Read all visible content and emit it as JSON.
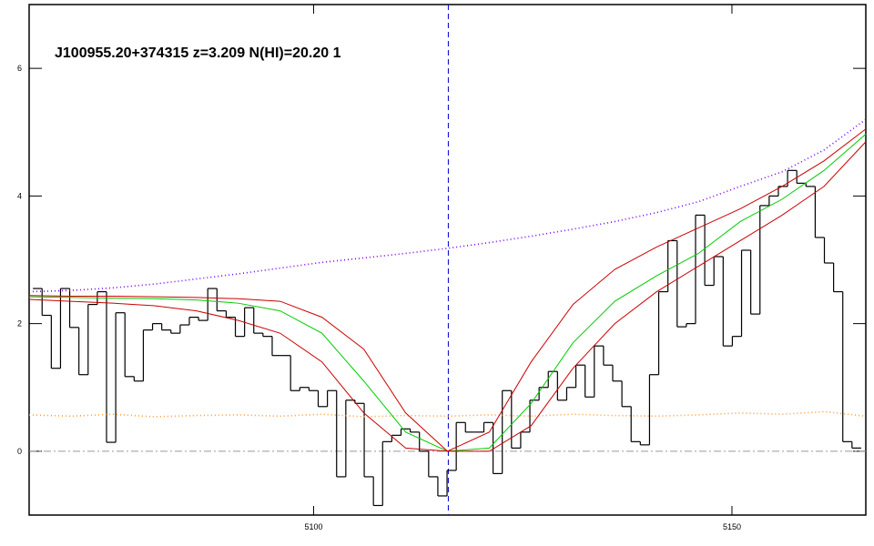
{
  "chart_data": {
    "type": "line",
    "title": "J100955.20+374315 z=3.209 N(HI)=20.20 1",
    "xlim": [
      5066,
      5166
    ],
    "ylim": [
      -1,
      7
    ],
    "xticks": [
      5100,
      5150
    ],
    "yticks": [
      0,
      2,
      4,
      6
    ],
    "vlines": [
      {
        "value": 5116.1,
        "color": "#0000cc",
        "style": "dashed"
      }
    ],
    "hlines": [
      {
        "value": 0,
        "color": "#999999",
        "style": "dashdot"
      }
    ],
    "series": [
      {
        "color": "#000000",
        "style": "steps",
        "x": [
          5067.0,
          5068.1,
          5069.2,
          5070.3,
          5071.4,
          5072.5,
          5073.6,
          5074.7,
          5075.8,
          5076.9,
          5078.0,
          5079.1,
          5080.2,
          5081.3,
          5082.4,
          5083.5,
          5084.6,
          5085.7,
          5086.8,
          5087.9,
          5089.0,
          5090.1,
          5091.2,
          5092.3,
          5093.4,
          5094.5,
          5095.6,
          5096.7,
          5097.8,
          5098.9,
          5100.0,
          5101.1,
          5102.2,
          5103.3,
          5104.4,
          5105.5,
          5106.6,
          5107.7,
          5108.8,
          5109.9,
          5111.0,
          5112.1,
          5113.2,
          5114.3,
          5115.4,
          5116.5,
          5117.6,
          5118.7,
          5119.8,
          5120.9,
          5122.0,
          5123.1,
          5124.2,
          5125.3,
          5126.4,
          5127.5,
          5128.6,
          5129.7,
          5130.8,
          5131.9,
          5133.0,
          5134.1,
          5135.2,
          5136.3,
          5137.4,
          5138.5,
          5139.6,
          5140.7,
          5141.8,
          5142.9,
          5144.0,
          5145.1,
          5146.2,
          5147.3,
          5148.4,
          5149.5,
          5150.6,
          5151.7,
          5152.8,
          5153.9,
          5155.0,
          5156.1,
          5157.2,
          5158.3,
          5159.4,
          5160.5,
          5161.6,
          5162.7,
          5163.8,
          5164.9
        ],
        "values": [
          2.55,
          2.13,
          1.3,
          2.55,
          1.94,
          1.2,
          2.3,
          2.5,
          0.14,
          2.17,
          1.17,
          1.1,
          1.9,
          2.0,
          1.9,
          1.85,
          1.98,
          2.1,
          2.05,
          2.55,
          2.2,
          2.1,
          1.8,
          2.25,
          1.85,
          1.8,
          1.5,
          1.5,
          0.95,
          1.0,
          0.95,
          0.7,
          0.95,
          -0.4,
          0.8,
          0.75,
          -0.4,
          -0.85,
          0.15,
          0.25,
          0.35,
          0.3,
          0.0,
          -0.4,
          -0.7,
          -0.3,
          0.45,
          0.3,
          0.3,
          0.45,
          -0.35,
          0.95,
          0.05,
          0.3,
          0.8,
          1.0,
          1.25,
          0.8,
          1.0,
          1.35,
          0.85,
          1.65,
          1.35,
          1.1,
          0.7,
          0.15,
          0.1,
          1.2,
          2.5,
          3.3,
          1.95,
          2.0,
          3.7,
          2.6,
          3.05,
          1.65,
          1.8,
          3.15,
          2.15,
          3.85,
          4.0,
          4.15,
          4.4,
          4.2,
          4.15,
          3.35,
          2.95,
          2.5,
          0.15,
          0.05
        ]
      },
      {
        "color": "#7a00ff",
        "style": "dotted",
        "x": [
          5066,
          5071,
          5076,
          5081,
          5086,
          5091,
          5096,
          5101,
          5106,
          5111,
          5116,
          5121,
          5126,
          5131,
          5136,
          5141,
          5146,
          5151,
          5156,
          5161,
          5166
        ],
        "values": [
          2.5,
          2.52,
          2.56,
          2.62,
          2.7,
          2.78,
          2.87,
          2.96,
          3.03,
          3.1,
          3.18,
          3.27,
          3.37,
          3.48,
          3.6,
          3.74,
          3.91,
          4.15,
          4.38,
          4.72,
          5.2
        ]
      },
      {
        "color": "#ff9933",
        "style": "dotted",
        "x": [
          5066,
          5071,
          5076,
          5081,
          5086,
          5091,
          5096,
          5101,
          5106,
          5111,
          5116,
          5121,
          5126,
          5131,
          5136,
          5141,
          5146,
          5151,
          5156,
          5161,
          5166
        ],
        "values": [
          0.57,
          0.55,
          0.58,
          0.54,
          0.56,
          0.57,
          0.55,
          0.58,
          0.54,
          0.56,
          0.55,
          0.57,
          0.55,
          0.58,
          0.56,
          0.55,
          0.57,
          0.6,
          0.58,
          0.62,
          0.55
        ]
      },
      {
        "color": "#00cc00",
        "style": "line",
        "x": [
          5066,
          5071,
          5076,
          5081,
          5086,
          5091,
          5096,
          5101,
          5106,
          5111,
          5116,
          5121,
          5126,
          5131,
          5136,
          5141,
          5146,
          5151,
          5156,
          5161,
          5166
        ],
        "values": [
          2.42,
          2.41,
          2.4,
          2.39,
          2.37,
          2.32,
          2.2,
          1.85,
          1.1,
          0.3,
          0.0,
          0.05,
          0.75,
          1.7,
          2.35,
          2.75,
          3.1,
          3.6,
          3.95,
          4.4,
          4.97
        ]
      },
      {
        "color": "#cc0000",
        "style": "line",
        "x": [
          5066,
          5071,
          5076,
          5081,
          5086,
          5091,
          5096,
          5101,
          5106,
          5111,
          5116,
          5121,
          5126,
          5131,
          5136,
          5141,
          5146,
          5151,
          5156,
          5161,
          5166
        ],
        "values": [
          2.44,
          2.43,
          2.43,
          2.42,
          2.41,
          2.39,
          2.35,
          2.1,
          1.6,
          0.6,
          0.0,
          0.3,
          1.4,
          2.3,
          2.85,
          3.2,
          3.5,
          3.8,
          4.15,
          4.55,
          5.05
        ]
      },
      {
        "color": "#cc0000",
        "style": "line",
        "x": [
          5066,
          5071,
          5076,
          5081,
          5086,
          5091,
          5096,
          5101,
          5106,
          5111,
          5116,
          5121,
          5126,
          5131,
          5136,
          5141,
          5146,
          5151,
          5156,
          5161,
          5166
        ],
        "values": [
          2.38,
          2.35,
          2.32,
          2.28,
          2.2,
          2.05,
          1.85,
          1.4,
          0.6,
          0.05,
          0.0,
          0.0,
          0.4,
          1.3,
          2.0,
          2.5,
          2.9,
          3.3,
          3.7,
          4.15,
          4.85
        ]
      }
    ]
  }
}
